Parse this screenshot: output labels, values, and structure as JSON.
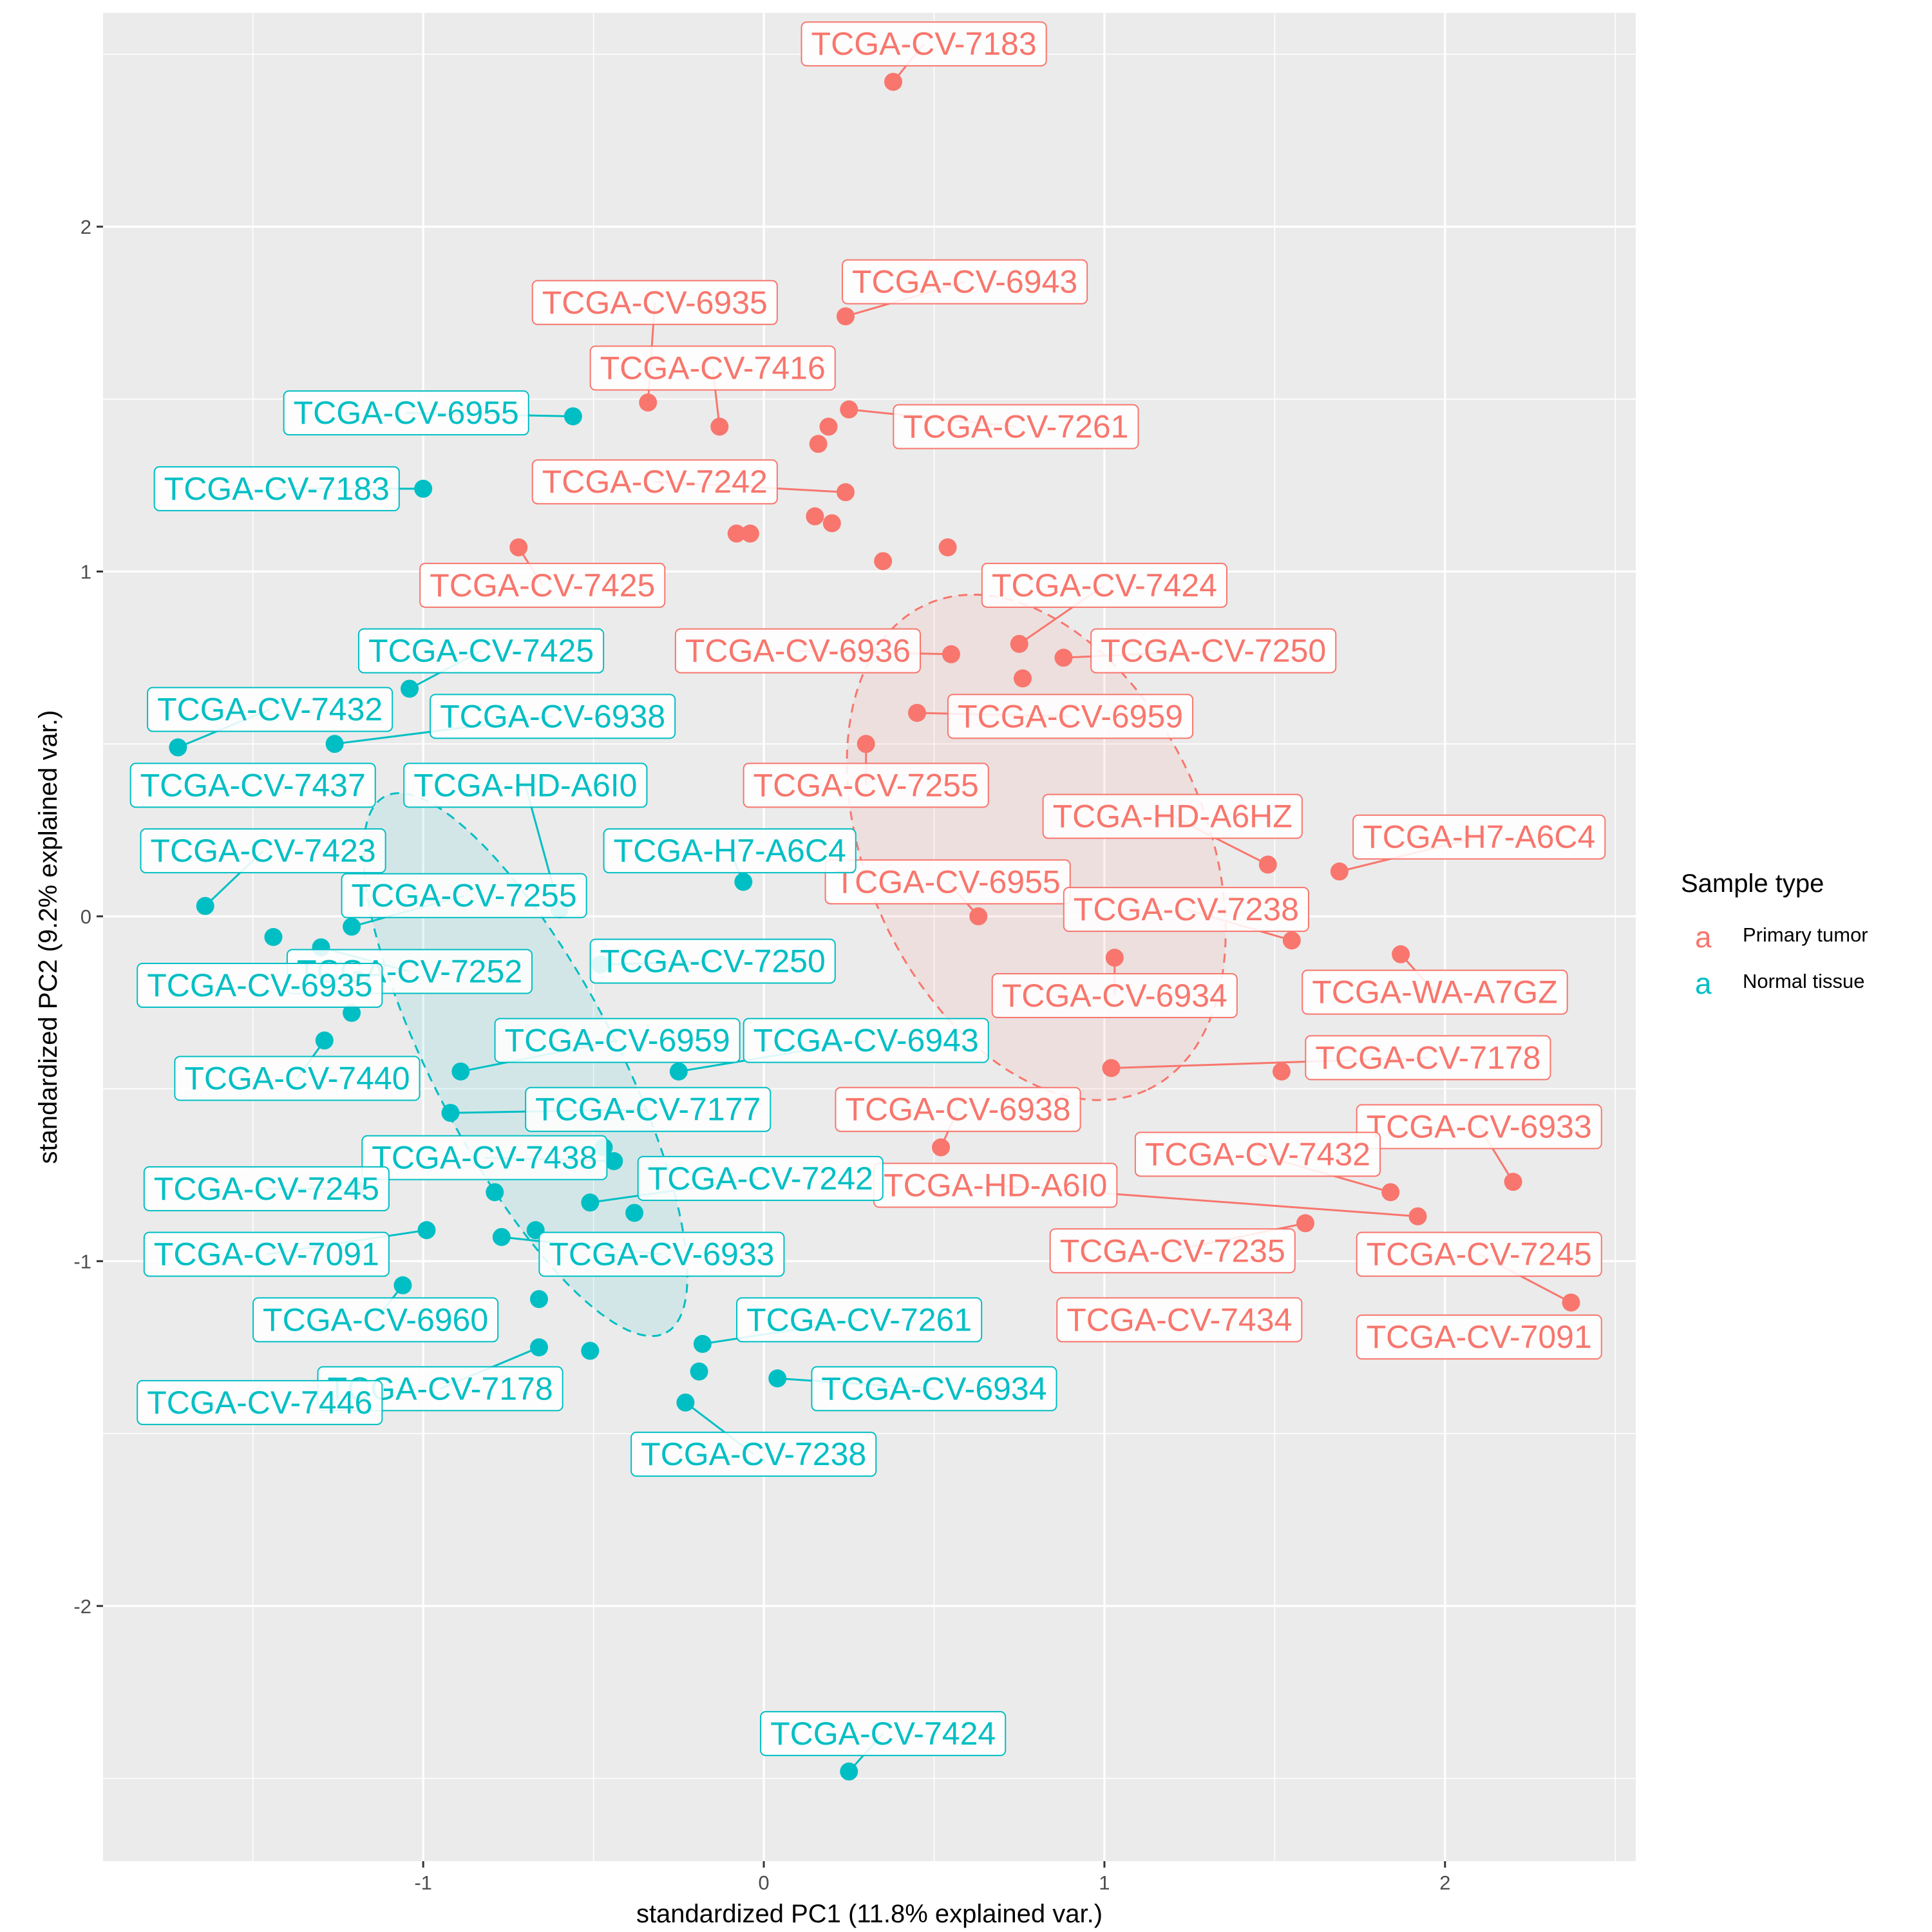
{
  "chart_data": {
    "type": "scatter",
    "title": "",
    "xlabel": "standardized PC1 (11.8% explained var.)",
    "ylabel": "standardized PC2 (9.2% explained var.)",
    "xlim": [
      -1.94,
      2.56
    ],
    "ylim": [
      -2.74,
      2.62
    ],
    "x_ticks": [
      -1,
      0,
      1,
      2
    ],
    "y_ticks": [
      -2,
      -1,
      0,
      1,
      2
    ],
    "grid": true,
    "legend": {
      "title": "Sample type",
      "position": "right",
      "key_glyph": "a"
    },
    "series": [
      {
        "name": "Primary tumor",
        "color": "#F8766D",
        "ellipse": {
          "cx": 0.8,
          "cy": 0.2,
          "rx": 1.25,
          "ry": 0.8,
          "angle": -65
        },
        "points": [
          {
            "x": 0.38,
            "y": 2.42,
            "label": "TCGA-CV-7183",
            "lx": 0.47,
            "ly": 2.53
          },
          {
            "x": 0.24,
            "y": 1.74,
            "label": "TCGA-CV-6943",
            "lx": 0.59,
            "ly": 1.84
          },
          {
            "x": -0.34,
            "y": 1.49,
            "label": "TCGA-CV-6935",
            "lx": -0.32,
            "ly": 1.78
          },
          {
            "x": -0.13,
            "y": 1.42,
            "label": "TCGA-CV-7416",
            "lx": -0.15,
            "ly": 1.59
          },
          {
            "x": 0.25,
            "y": 1.47,
            "label": "TCGA-CV-7261",
            "lx": 0.74,
            "ly": 1.42
          },
          {
            "x": 0.19,
            "y": 1.42,
            "label": "",
            "lx": 0,
            "ly": 0
          },
          {
            "x": 0.16,
            "y": 1.37,
            "label": "",
            "lx": 0,
            "ly": 0
          },
          {
            "x": 0.24,
            "y": 1.23,
            "label": "TCGA-CV-7242",
            "lx": -0.32,
            "ly": 1.26
          },
          {
            "x": 0.15,
            "y": 1.16,
            "label": "",
            "lx": 0,
            "ly": 0
          },
          {
            "x": 0.2,
            "y": 1.14,
            "label": "",
            "lx": 0,
            "ly": 0
          },
          {
            "x": -0.08,
            "y": 1.11,
            "label": "",
            "lx": 0,
            "ly": 0
          },
          {
            "x": -0.04,
            "y": 1.11,
            "label": "",
            "lx": 0,
            "ly": 0
          },
          {
            "x": -0.72,
            "y": 1.07,
            "label": "TCGA-CV-7425",
            "lx": -0.65,
            "ly": 0.96
          },
          {
            "x": 0.54,
            "y": 1.07,
            "label": "",
            "lx": 0,
            "ly": 0
          },
          {
            "x": 0.35,
            "y": 1.03,
            "label": "",
            "lx": 0,
            "ly": 0
          },
          {
            "x": 0.75,
            "y": 0.79,
            "label": "TCGA-CV-7424",
            "lx": 1.0,
            "ly": 0.96
          },
          {
            "x": 0.55,
            "y": 0.76,
            "label": "TCGA-CV-6936",
            "lx": 0.1,
            "ly": 0.77
          },
          {
            "x": 0.88,
            "y": 0.75,
            "label": "TCGA-CV-7250",
            "lx": 1.32,
            "ly": 0.77
          },
          {
            "x": 0.76,
            "y": 0.69,
            "label": "",
            "lx": 0,
            "ly": 0
          },
          {
            "x": 0.45,
            "y": 0.59,
            "label": "TCGA-CV-6959",
            "lx": 0.9,
            "ly": 0.58
          },
          {
            "x": 0.3,
            "y": 0.5,
            "label": "TCGA-CV-7255",
            "lx": 0.3,
            "ly": 0.38
          },
          {
            "x": 1.48,
            "y": 0.15,
            "label": "TCGA-HD-A6HZ",
            "lx": 1.2,
            "ly": 0.29
          },
          {
            "x": 1.69,
            "y": 0.13,
            "label": "TCGA-H7-A6C4",
            "lx": 2.1,
            "ly": 0.23
          },
          {
            "x": 0.63,
            "y": 0.0,
            "label": "TCGA-CV-6955",
            "lx": 0.54,
            "ly": 0.1
          },
          {
            "x": 1.55,
            "y": -0.07,
            "label": "TCGA-CV-7238",
            "lx": 1.24,
            "ly": 0.02
          },
          {
            "x": 1.03,
            "y": -0.12,
            "label": "TCGA-CV-6934",
            "lx": 1.03,
            "ly": -0.23
          },
          {
            "x": 1.87,
            "y": -0.11,
            "label": "TCGA-WA-A7GZ",
            "lx": 1.97,
            "ly": -0.22
          },
          {
            "x": 1.02,
            "y": -0.44,
            "label": "TCGA-CV-7178",
            "lx": 1.95,
            "ly": -0.41
          },
          {
            "x": 1.52,
            "y": -0.45,
            "label": "",
            "lx": 0,
            "ly": 0
          },
          {
            "x": 0.52,
            "y": -0.67,
            "label": "TCGA-CV-6938",
            "lx": 0.57,
            "ly": -0.56
          },
          {
            "x": 2.2,
            "y": -0.77,
            "label": "TCGA-CV-6933",
            "lx": 2.1,
            "ly": -0.61
          },
          {
            "x": 1.84,
            "y": -0.8,
            "label": "TCGA-CV-7432",
            "lx": 1.45,
            "ly": -0.69
          },
          {
            "x": 1.92,
            "y": -0.87,
            "label": "TCGA-HD-A6I0",
            "lx": 0.68,
            "ly": -0.78
          },
          {
            "x": 1.59,
            "y": -0.89,
            "label": "TCGA-CV-7235",
            "lx": 1.2,
            "ly": -0.97
          },
          {
            "x": 2.37,
            "y": -1.12,
            "label": "TCGA-CV-7245",
            "lx": 2.1,
            "ly": -0.98
          },
          {
            "x": 0.0,
            "y": 0.0,
            "label": "TCGA-CV-7434",
            "lx": 1.22,
            "ly": -1.17,
            "hidden": true
          },
          {
            "x": 0.0,
            "y": 0.0,
            "label": "TCGA-CV-7091",
            "lx": 2.1,
            "ly": -1.22,
            "hidden": true
          }
        ]
      },
      {
        "name": "Normal tissue",
        "color": "#00BFC4",
        "ellipse": {
          "cx": -0.7,
          "cy": -0.43,
          "rx": 1.42,
          "ry": 0.43,
          "angle": -62
        },
        "points": [
          {
            "x": -0.56,
            "y": 1.45,
            "label": "TCGA-CV-6955",
            "lx": -1.05,
            "ly": 1.46
          },
          {
            "x": -1.0,
            "y": 1.24,
            "label": "TCGA-CV-7183",
            "lx": -1.43,
            "ly": 1.24
          },
          {
            "x": -1.04,
            "y": 0.66,
            "label": "TCGA-CV-7425",
            "lx": -0.83,
            "ly": 0.77
          },
          {
            "x": -1.72,
            "y": 0.49,
            "label": "TCGA-CV-7432",
            "lx": -1.45,
            "ly": 0.6
          },
          {
            "x": -1.26,
            "y": 0.5,
            "label": "TCGA-CV-6938",
            "lx": -0.62,
            "ly": 0.58
          },
          {
            "x": -1.64,
            "y": 0.03,
            "label": "TCGA-CV-7423",
            "lx": -1.47,
            "ly": 0.19
          },
          {
            "x": 0.0,
            "y": 0.0,
            "label": "TCGA-CV-7437",
            "lx": -1.5,
            "ly": 0.38,
            "hidden": true
          },
          {
            "x": -0.6,
            "y": 0.02,
            "label": "TCGA-HD-A6I0",
            "lx": -0.7,
            "ly": 0.38
          },
          {
            "x": -0.06,
            "y": 0.1,
            "label": "TCGA-H7-A6C4",
            "lx": -0.1,
            "ly": 0.19
          },
          {
            "x": -1.21,
            "y": -0.03,
            "label": "TCGA-CV-7255",
            "lx": -0.88,
            "ly": 0.06
          },
          {
            "x": -1.44,
            "y": -0.06,
            "label": "",
            "lx": 0,
            "ly": 0
          },
          {
            "x": -1.3,
            "y": -0.09,
            "label": "TCGA-CV-7252",
            "lx": -1.04,
            "ly": -0.16
          },
          {
            "x": 0.0,
            "y": 0.0,
            "label": "TCGA-CV-6935",
            "lx": -1.48,
            "ly": -0.2,
            "hidden": true
          },
          {
            "x": -0.48,
            "y": -0.14,
            "label": "TCGA-CV-7250",
            "lx": -0.15,
            "ly": -0.13
          },
          {
            "x": -1.21,
            "y": -0.28,
            "label": "",
            "lx": 0,
            "ly": 0
          },
          {
            "x": -1.29,
            "y": -0.36,
            "label": "TCGA-CV-7440",
            "lx": -1.37,
            "ly": -0.47
          },
          {
            "x": -0.89,
            "y": -0.45,
            "label": "TCGA-CV-6959",
            "lx": -0.43,
            "ly": -0.36
          },
          {
            "x": -0.25,
            "y": -0.45,
            "label": "TCGA-CV-6943",
            "lx": 0.3,
            "ly": -0.36
          },
          {
            "x": -0.92,
            "y": -0.57,
            "label": "TCGA-CV-7177",
            "lx": -0.34,
            "ly": -0.56
          },
          {
            "x": -0.47,
            "y": -0.67,
            "label": "",
            "lx": 0,
            "ly": 0
          },
          {
            "x": -0.44,
            "y": -0.71,
            "label": "TCGA-CV-7438",
            "lx": -0.82,
            "ly": -0.7
          },
          {
            "x": -1.2,
            "y": -0.79,
            "label": "TCGA-CV-7245",
            "lx": -1.46,
            "ly": -0.79
          },
          {
            "x": -0.79,
            "y": -0.8,
            "label": "",
            "lx": 0,
            "ly": 0
          },
          {
            "x": -0.51,
            "y": -0.83,
            "label": "TCGA-CV-7242",
            "lx": -0.01,
            "ly": -0.76
          },
          {
            "x": -0.38,
            "y": -0.86,
            "label": "",
            "lx": 0,
            "ly": 0
          },
          {
            "x": -0.99,
            "y": -0.91,
            "label": "TCGA-CV-7091",
            "lx": -1.46,
            "ly": -0.98
          },
          {
            "x": -0.67,
            "y": -0.91,
            "label": "",
            "lx": 0,
            "ly": 0
          },
          {
            "x": -0.77,
            "y": -0.93,
            "label": "TCGA-CV-6933",
            "lx": -0.3,
            "ly": -0.98
          },
          {
            "x": -1.06,
            "y": -1.07,
            "label": "TCGA-CV-6960",
            "lx": -1.14,
            "ly": -1.17
          },
          {
            "x": -0.66,
            "y": -1.11,
            "label": "",
            "lx": 0,
            "ly": 0
          },
          {
            "x": -0.18,
            "y": -1.24,
            "label": "TCGA-CV-7261",
            "lx": 0.28,
            "ly": -1.17
          },
          {
            "x": -0.66,
            "y": -1.25,
            "label": "TCGA-CV-7178",
            "lx": -0.95,
            "ly": -1.37
          },
          {
            "x": -0.51,
            "y": -1.26,
            "label": "",
            "lx": 0,
            "ly": 0
          },
          {
            "x": -0.19,
            "y": -1.32,
            "label": "",
            "lx": 0,
            "ly": 0
          },
          {
            "x": 0.04,
            "y": -1.34,
            "label": "TCGA-CV-6934",
            "lx": 0.5,
            "ly": -1.37
          },
          {
            "x": 0.0,
            "y": 0.0,
            "label": "TCGA-CV-7446",
            "lx": -1.48,
            "ly": -1.41,
            "hidden": true
          },
          {
            "x": -0.23,
            "y": -1.41,
            "label": "TCGA-CV-7238",
            "lx": -0.03,
            "ly": -1.56
          },
          {
            "x": 0.25,
            "y": -2.48,
            "label": "TCGA-CV-7424",
            "lx": 0.35,
            "ly": -2.37
          }
        ]
      }
    ]
  }
}
